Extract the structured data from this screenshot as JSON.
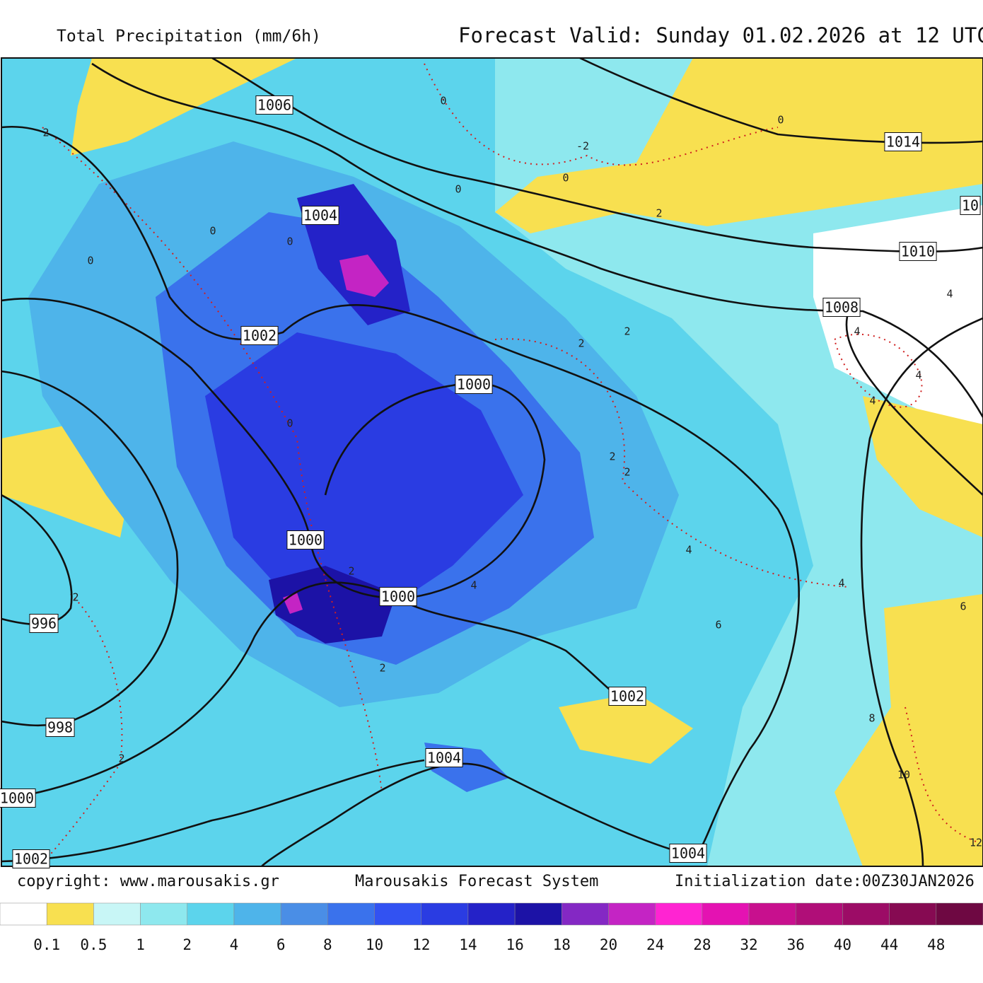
{
  "header": {
    "title": "Total Precipitation (mm/6h)",
    "valid": "Forecast Valid:  Sunday 01.02.2026 at 12 UTC"
  },
  "footer": {
    "copyright": "copyright: www.marousakis.gr",
    "system": "Marousakis Forecast System",
    "init": "Initialization date:00Z30JAN2026"
  },
  "legend": {
    "levels": [
      0.1,
      0.5,
      1,
      2,
      4,
      6,
      8,
      10,
      12,
      14,
      16,
      18,
      20,
      24,
      28,
      32,
      36,
      40,
      44,
      48
    ],
    "colors": [
      "#ffffff",
      "#f8e050",
      "#c8f6f6",
      "#8ee8ee",
      "#5cd4ec",
      "#4eb4ea",
      "#4a8ee6",
      "#3a72ec",
      "#3252f2",
      "#2a3ce2",
      "#2422c8",
      "#1c12a6",
      "#8428c4",
      "#c424c4",
      "#ff24d2",
      "#e412b2",
      "#c8108e",
      "#b00e78",
      "#9c0c66",
      "#860a52",
      "#6e0842"
    ]
  },
  "isobar_labels": [
    "1006",
    "1004",
    "1002",
    "1000",
    "1000",
    "1000",
    "1002",
    "1004",
    "1004",
    "998",
    "996",
    "1000",
    "1002",
    "1008",
    "1010",
    "1014",
    "10"
  ],
  "isotherm_labels": [
    "0",
    "0",
    "0",
    "0",
    "0",
    "0",
    "0",
    "-2",
    "0",
    "2",
    "2",
    "2",
    "2",
    "2",
    "2",
    "2",
    "2",
    "2",
    "4",
    "4",
    "4",
    "4",
    "4",
    "4",
    "6",
    "6",
    "8",
    "10",
    "12",
    "2",
    "4"
  ]
}
